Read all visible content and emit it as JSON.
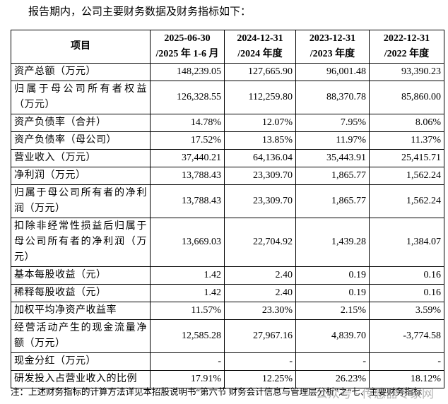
{
  "intro": "报告期内，公司主要财务数据及财务指标如下：",
  "table": {
    "header": [
      {
        "line1": "项目"
      },
      {
        "line1": "2025-06-30",
        "line2": "/2025 年 1-6 月"
      },
      {
        "line1": "2024-12-31",
        "line2": "/2024 年度"
      },
      {
        "line1": "2023-12-31",
        "line2": "/2023 年度"
      },
      {
        "line1": "2022-12-31",
        "line2": "/2022 年度"
      }
    ],
    "rows": [
      [
        "资产总额（万元）",
        "148,239.05",
        "127,665.90",
        "96,001.48",
        "93,390.23"
      ],
      [
        "归属于母公司所有者权益（万元）",
        "126,328.55",
        "112,259.80",
        "88,370.78",
        "85,860.00"
      ],
      [
        "资产负债率（合并）",
        "14.78%",
        "12.07%",
        "7.95%",
        "8.06%"
      ],
      [
        "资产负债率（母公司）",
        "17.52%",
        "13.85%",
        "11.97%",
        "11.37%"
      ],
      [
        "营业收入（万元）",
        "37,440.21",
        "64,136.04",
        "35,443.91",
        "25,415.71"
      ],
      [
        "净利润（万元）",
        "13,788.43",
        "23,309.70",
        "1,865.77",
        "1,562.24"
      ],
      [
        "归属于母公司所有者的净利润（万元）",
        "13,788.43",
        "23,309.70",
        "1,865.77",
        "1,562.24"
      ],
      [
        "扣除非经常性损益后归属于母公司所有者的净利润（万元）",
        "13,669.03",
        "22,704.92",
        "1,439.28",
        "1,384.07"
      ],
      [
        "基本每股收益（元）",
        "1.42",
        "2.40",
        "0.19",
        "0.16"
      ],
      [
        "稀释每股收益（元）",
        "1.42",
        "2.40",
        "0.19",
        "0.16"
      ],
      [
        "加权平均净资产收益率",
        "11.57%",
        "23.30%",
        "2.15%",
        "3.59%"
      ],
      [
        "经营活动产生的现金流量净额（万元）",
        "12,585.28",
        "27,967.16",
        "4,839.70",
        "-3,774.58"
      ],
      [
        "现金分红（万元）",
        "-",
        "-",
        "-",
        "-"
      ],
      [
        "研发投入占营业收入的比例",
        "17.91%",
        "12.25%",
        "26.23%",
        "18.12%"
      ]
    ]
  },
  "footnote": "注：上述财务指标的计算方法详见本招股说明书“第六节 财务会计信息与管理层分析”之“七、主要财务指标",
  "watermark": "公众号 · 传感器专家网"
}
